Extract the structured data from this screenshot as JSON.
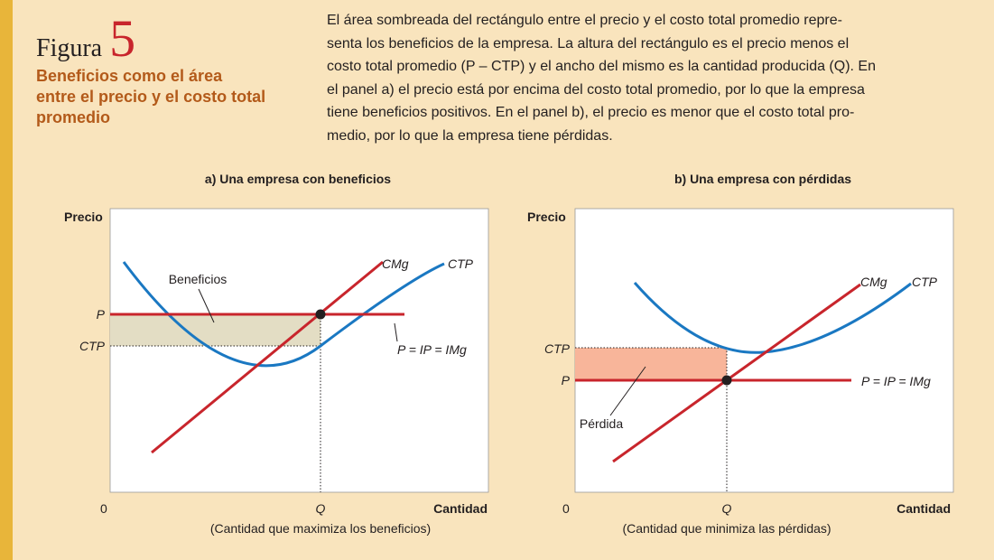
{
  "figure": {
    "word": "Figura",
    "number": "5",
    "subtitle": "Beneficios como el área entre el precio y el costo total promedio",
    "caption_lines": [
      "El área sombreada del rectángulo entre el precio y el costo total promedio repre-",
      "senta los beneficios de la empresa. La altura del rectángulo es el precio menos el",
      "costo total promedio (P – CTP) y el ancho del mismo es la cantidad producida (Q). En",
      "el panel a) el precio está por encima del costo total promedio, por lo que la empresa",
      "tiene beneficios positivos. En el panel b), el precio es menor que el costo total pro-",
      "medio, por lo que la empresa tiene pérdidas."
    ]
  },
  "panel_a": {
    "title": "a) Una empresa con beneficios",
    "y_axis_label": "Precio",
    "x_axis_label": "Cantidad",
    "origin": "0",
    "q_label": "Q",
    "x_note": "(Cantidad que maximiza los beneficios)",
    "p_label": "P",
    "ctp_label": "CTP",
    "curve_mc": "CMg",
    "curve_atc": "CTP",
    "price_line": "P = IP = IMg",
    "area_label": "Beneficios"
  },
  "panel_b": {
    "title": "b) Una empresa con pérdidas",
    "y_axis_label": "Precio",
    "x_axis_label": "Cantidad",
    "origin": "0",
    "q_label": "Q",
    "x_note": "(Cantidad que minimiza las pérdidas)",
    "p_label": "P",
    "ctp_label": "CTP",
    "curve_mc": "CMg",
    "curve_atc": "CTP",
    "price_line": "P = IP = IMg",
    "area_label": "Pérdida"
  },
  "colors": {
    "mc_curve": "#c8252c",
    "atc_curve": "#1a78c2",
    "profit_area": "#e3ddc4",
    "loss_area": "#f8b59a",
    "sidebar": "#e8b53a",
    "subtitle": "#b35a1a",
    "figure_number": "#c8252c"
  }
}
